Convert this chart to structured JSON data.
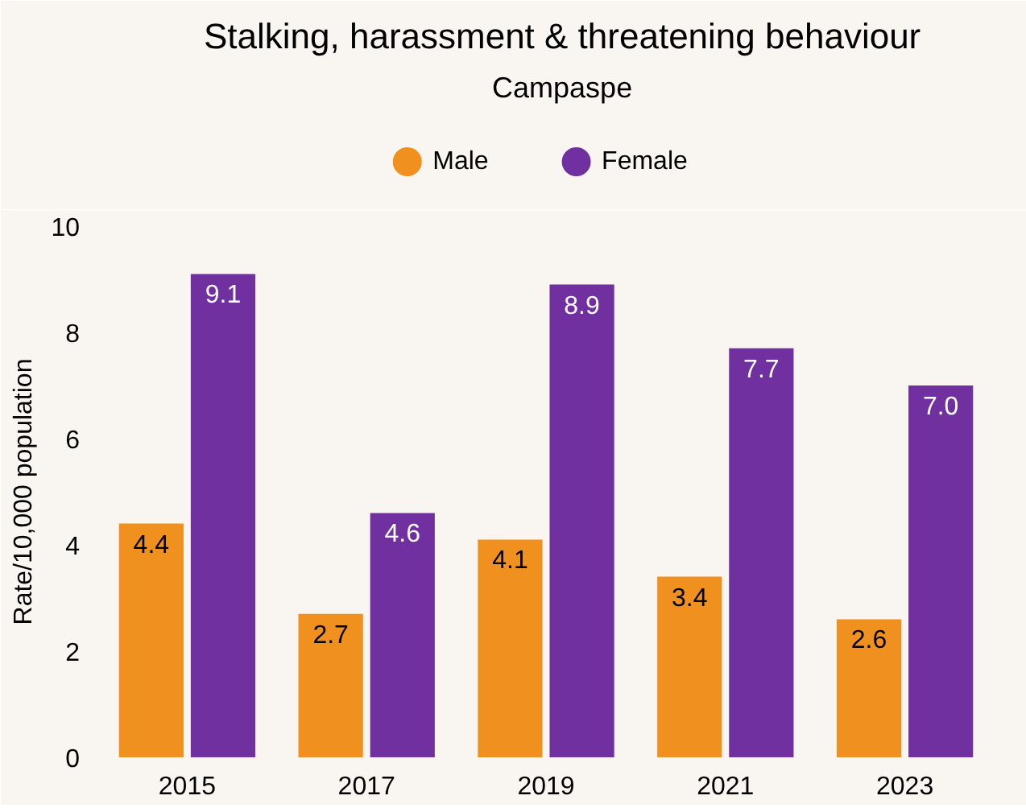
{
  "chart_data": {
    "type": "bar",
    "title": "Stalking, harassment & threatening behaviour",
    "subtitle": "Campaspe",
    "ylabel": "Rate/10,000 population",
    "categories": [
      "2015",
      "2017",
      "2019",
      "2021",
      "2023"
    ],
    "series": [
      {
        "name": "Male",
        "color": "#f0901e",
        "values": [
          4.4,
          2.7,
          4.1,
          3.4,
          2.6
        ],
        "value_labels": [
          "4.4",
          "2.7",
          "4.1",
          "3.4",
          "2.6"
        ]
      },
      {
        "name": "Female",
        "color": "#7030a0",
        "values": [
          9.1,
          4.6,
          8.9,
          7.7,
          7.0
        ],
        "value_labels": [
          "9.1",
          "4.6",
          "8.9",
          "7.7",
          "7.0"
        ]
      }
    ],
    "ylim": [
      0,
      10
    ],
    "yticks": [
      0,
      2,
      4,
      6,
      8,
      10
    ],
    "legend": "top"
  }
}
